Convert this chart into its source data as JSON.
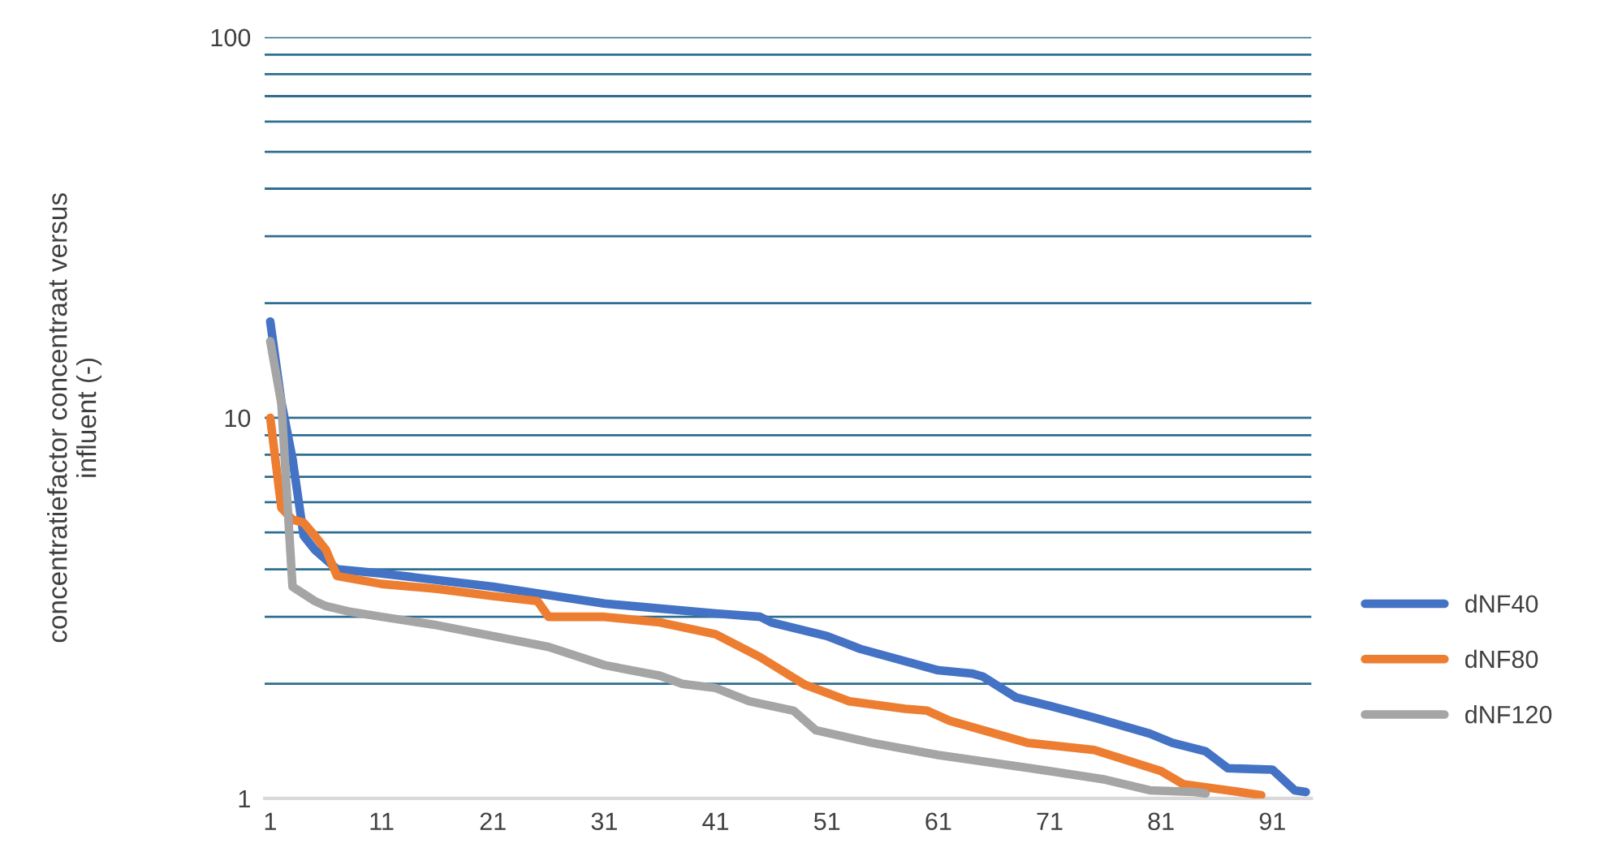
{
  "chart_data": {
    "type": "line",
    "ylabel": "concentratiefactor concentraat versus\ninfluent (-)",
    "log": "y",
    "ylim": [
      1,
      100
    ],
    "yticks": [
      1,
      {
        "value": 2,
        "label": null
      },
      {
        "value": 3,
        "label": null
      },
      {
        "value": 4,
        "label": null
      },
      {
        "value": 5,
        "label": null
      },
      {
        "value": 6,
        "label": null
      },
      {
        "value": 7,
        "label": null
      },
      {
        "value": 8,
        "label": null
      },
      {
        "value": 9,
        "label": null
      },
      10,
      {
        "value": 20,
        "label": null
      },
      {
        "value": 30,
        "label": null
      },
      {
        "value": 40,
        "label": null
      },
      {
        "value": 50,
        "label": null
      },
      {
        "value": 60,
        "label": null
      },
      {
        "value": 70,
        "label": null
      },
      {
        "value": 80,
        "label": null
      },
      {
        "value": 90,
        "label": null
      },
      100
    ],
    "xlim": [
      0.5,
      94.5
    ],
    "xticks": [
      1,
      11,
      21,
      31,
      41,
      51,
      61,
      71,
      81,
      91
    ],
    "grid": "y",
    "legend": "right",
    "line_style": "solid",
    "marker": "none",
    "series": [
      {
        "name": "dNF40",
        "color": "#4472c4",
        "x": [
          1,
          2,
          3,
          4,
          5,
          7,
          11,
          21,
          31,
          41,
          45,
          46,
          51,
          54,
          61,
          64,
          65,
          68,
          71,
          75,
          80,
          82,
          85,
          87,
          91,
          93,
          94
        ],
        "values": [
          17.9,
          11,
          7.8,
          4.9,
          4.5,
          4.0,
          3.9,
          3.6,
          3.25,
          3.06,
          3.0,
          2.9,
          2.67,
          2.47,
          2.17,
          2.13,
          2.09,
          1.84,
          1.75,
          1.63,
          1.48,
          1.4,
          1.33,
          1.2,
          1.19,
          1.05,
          1.04
        ]
      },
      {
        "name": "dNF80",
        "color": "#ed7d31",
        "x": [
          1,
          2,
          3,
          4,
          5,
          6,
          7,
          11,
          16,
          21,
          25,
          26,
          31,
          36,
          41,
          45,
          49,
          53,
          58,
          60,
          62,
          69,
          75,
          81,
          83,
          87,
          90
        ],
        "values": [
          10,
          5.8,
          5.4,
          5.3,
          4.9,
          4.5,
          3.84,
          3.66,
          3.55,
          3.4,
          3.3,
          3.0,
          3.0,
          2.9,
          2.7,
          2.35,
          1.99,
          1.8,
          1.72,
          1.7,
          1.6,
          1.4,
          1.34,
          1.18,
          1.09,
          1.05,
          1.02
        ]
      },
      {
        "name": "dNF120",
        "color": "#a5a5a5",
        "x": [
          1,
          2,
          3,
          5,
          6,
          8,
          11,
          16,
          21,
          26,
          31,
          36,
          38,
          41,
          44,
          48,
          50,
          55,
          61,
          71,
          76,
          80,
          84,
          85
        ],
        "values": [
          15.9,
          10.9,
          3.6,
          3.3,
          3.2,
          3.1,
          3.0,
          2.85,
          2.67,
          2.5,
          2.24,
          2.1,
          2.0,
          1.95,
          1.8,
          1.7,
          1.51,
          1.4,
          1.3,
          1.18,
          1.12,
          1.05,
          1.04,
          1.03
        ]
      }
    ]
  }
}
